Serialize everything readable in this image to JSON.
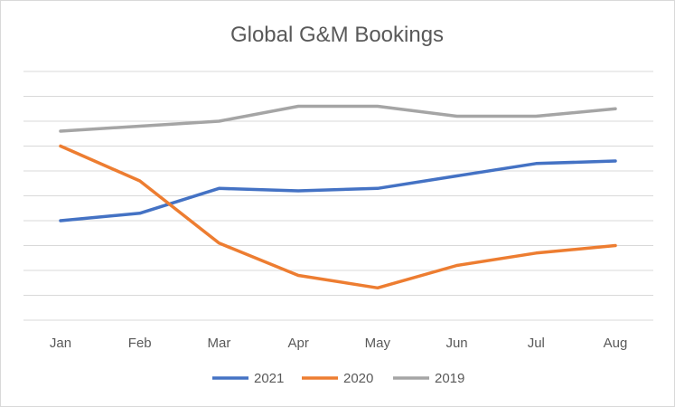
{
  "chart_data": {
    "type": "line",
    "title": "Global G&M Bookings",
    "xlabel": "",
    "ylabel": "",
    "categories": [
      "Jan",
      "Feb",
      "Mar",
      "Apr",
      "May",
      "Jun",
      "Jul",
      "Aug"
    ],
    "ylim": [
      0,
      10
    ],
    "y_tick_labels_shown": false,
    "grid": true,
    "legend_position": "bottom",
    "series": [
      {
        "name": "2021",
        "color": "#4472C4",
        "values": [
          4.0,
          4.3,
          5.3,
          5.2,
          5.3,
          5.8,
          6.3,
          6.4
        ]
      },
      {
        "name": "2020",
        "color": "#ED7D31",
        "values": [
          7.0,
          5.6,
          3.1,
          1.8,
          1.3,
          2.2,
          2.7,
          3.0
        ]
      },
      {
        "name": "2019",
        "color": "#A5A5A5",
        "values": [
          7.6,
          7.8,
          8.0,
          8.6,
          8.6,
          8.2,
          8.2,
          8.5
        ]
      }
    ]
  }
}
